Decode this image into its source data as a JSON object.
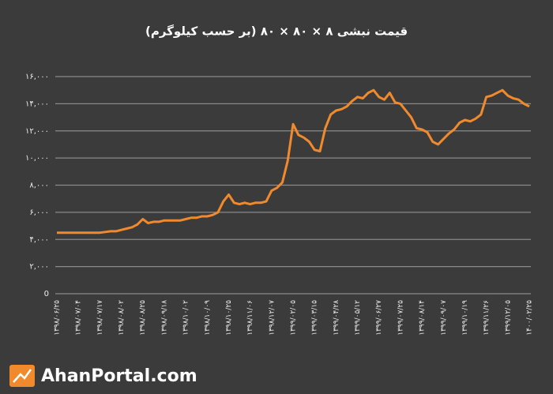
{
  "chart_data": {
    "type": "line",
    "title": "قیمت نبشی ۸ × ۸۰ × ۸۰ (بر حسب کیلوگرم)",
    "categories": [
      "۱۳۹۸/۰۶/۲۵",
      null,
      null,
      null,
      "۱۳۹۸/۰۷/۰۴",
      null,
      null,
      null,
      "۱۳۹۸/۰۷/۱۷",
      null,
      null,
      null,
      "۱۳۹۸/۰۸/۰۲",
      null,
      null,
      null,
      "۱۳۹۸/۰۸/۲۵",
      null,
      null,
      null,
      "۱۳۹۸/۰۹/۱۸",
      null,
      null,
      null,
      "۱۳۹۸/۱۰/۰۲",
      null,
      null,
      null,
      "۱۳۹۸/۱۰/۰۹",
      null,
      null,
      null,
      "۱۳۹۸/۱۰/۲۵",
      null,
      null,
      null,
      "۱۳۹۸/۱۱/۰۶",
      null,
      null,
      null,
      "۱۳۹۸/۱۲/۰۷",
      null,
      null,
      null,
      "۱۳۹۹/۰۲/۰۵",
      null,
      null,
      null,
      "۱۳۹۹/۰۳/۱۵",
      null,
      null,
      null,
      "۱۳۹۹/۰۴/۲۸",
      null,
      null,
      null,
      "۱۳۹۹/۰۵/۱۲",
      null,
      null,
      null,
      "۱۳۹۹/۰۶/۲۷",
      null,
      null,
      null,
      "۱۳۹۹/۰۷/۲۵",
      null,
      null,
      null,
      "۱۳۹۹/۰۸/۱۴",
      null,
      null,
      null,
      "۱۳۹۹/۰۹/۰۷",
      null,
      null,
      null,
      "۱۳۹۹/۱۰/۱۹",
      null,
      null,
      null,
      "۱۳۹۹/۱۱/۲۶",
      null,
      null,
      null,
      "۱۳۹۹/۱۲/۰۵",
      null,
      null,
      null,
      "۱۴۰۰/۰۲/۲۵"
    ],
    "values": [
      4500,
      4500,
      4500,
      4500,
      4500,
      4500,
      4500,
      4500,
      4500,
      4550,
      4600,
      4600,
      4700,
      4800,
      4900,
      5100,
      5500,
      5200,
      5300,
      5300,
      5400,
      5400,
      5400,
      5400,
      5500,
      5600,
      5600,
      5700,
      5700,
      5800,
      6000,
      6800,
      7300,
      6700,
      6600,
      6700,
      6600,
      6700,
      6700,
      6800,
      7600,
      7800,
      8200,
      9800,
      12500,
      11700,
      11500,
      11200,
      10600,
      10500,
      12200,
      13200,
      13500,
      13600,
      13800,
      14200,
      14500,
      14400,
      14800,
      15000,
      14500,
      14300,
      14800,
      14100,
      14000,
      13500,
      13000,
      12200,
      12100,
      11900,
      11200,
      11000,
      11400,
      11800,
      12100,
      12600,
      12800,
      12700,
      12900,
      13200,
      14500,
      14600,
      14800,
      15000,
      14600,
      14400,
      14300,
      14000,
      13800
    ],
    "color": "#f08a2c",
    "ylim": [
      0,
      16000
    ],
    "yticks": [
      0,
      {
        "value": 2000,
        "label": "۲,۰۰۰"
      },
      {
        "value": 4000,
        "label": "۴,۰۰۰"
      },
      {
        "value": 6000,
        "label": "۶,۰۰۰"
      },
      {
        "value": 8000,
        "label": "۸,۰۰۰"
      },
      {
        "value": 10000,
        "label": "۱۰,۰۰۰"
      },
      {
        "value": 12000,
        "label": "۱۲,۰۰۰"
      },
      {
        "value": 14000,
        "label": "۱۴,۰۰۰"
      },
      {
        "value": 16000,
        "label": "۱۶,۰۰۰"
      }
    ],
    "grid": true
  },
  "watermark": "AhanPortal.com"
}
